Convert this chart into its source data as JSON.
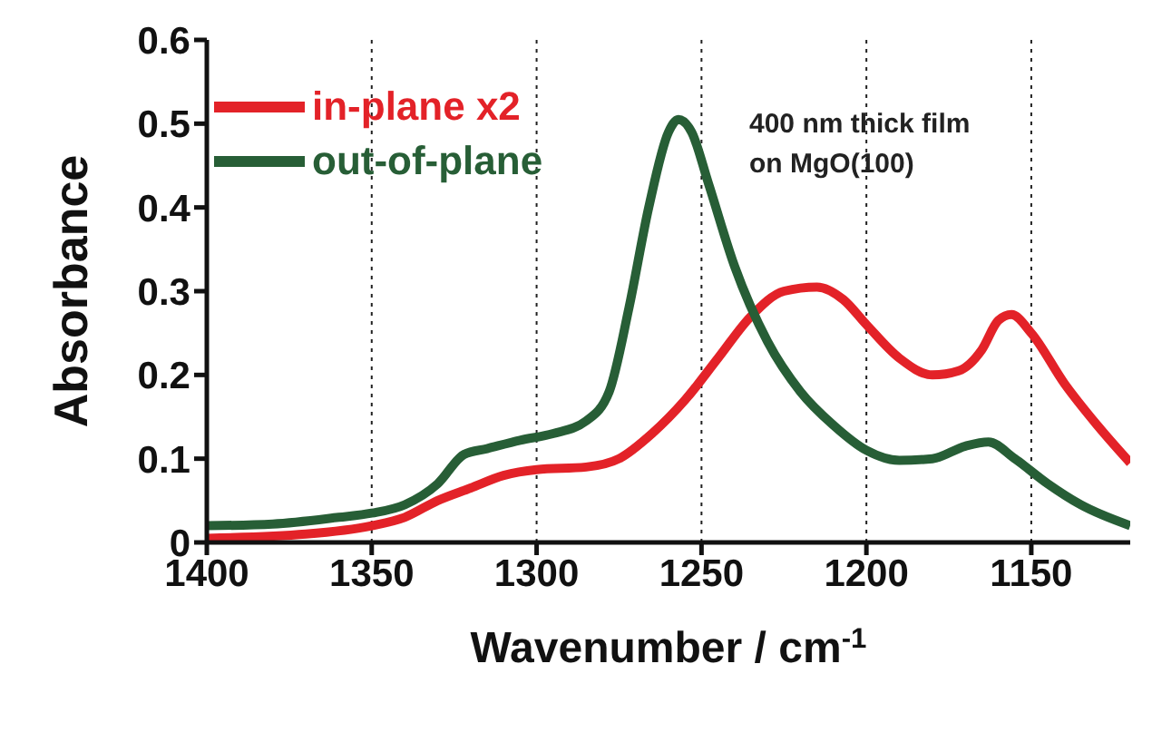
{
  "chart_data": {
    "type": "line",
    "xlabel": "Wavenumber / cm$^{-1}$",
    "ylabel": "Absorbance",
    "annotations": [
      "400 nm thick film\non MgO(100)"
    ],
    "xlim": [
      1400,
      1120
    ],
    "xticks": [
      1400,
      1350,
      1300,
      1250,
      1200,
      1150
    ],
    "ylim": [
      0,
      0.6
    ],
    "yticks": [
      0,
      0.1,
      0.2,
      0.3,
      0.4,
      0.5,
      0.6
    ],
    "grid": "x",
    "legend": "top left",
    "marker": "none",
    "line_style": "solid",
    "series": [
      {
        "name": "in-plane x2",
        "color": "#e32228",
        "x": [
          1400,
          1370,
          1350,
          1340,
          1330,
          1320,
          1310,
          1300,
          1285,
          1275,
          1265,
          1255,
          1245,
          1235,
          1225,
          1215,
          1207,
          1200,
          1190,
          1180,
          1172,
          1165,
          1160,
          1156,
          1150,
          1140,
          1130,
          1120
        ],
        "values": [
          0.005,
          0.01,
          0.02,
          0.03,
          0.05,
          0.065,
          0.08,
          0.087,
          0.09,
          0.1,
          0.13,
          0.17,
          0.22,
          0.27,
          0.3,
          0.305,
          0.29,
          0.26,
          0.22,
          0.2,
          0.205,
          0.23,
          0.265,
          0.272,
          0.25,
          0.19,
          0.14,
          0.095
        ]
      },
      {
        "name": "out-of-plane",
        "color": "#275e36",
        "x": [
          1400,
          1380,
          1360,
          1350,
          1340,
          1330,
          1322,
          1315,
          1305,
          1295,
          1285,
          1278,
          1272,
          1266,
          1260,
          1257,
          1253,
          1248,
          1240,
          1230,
          1220,
          1210,
          1200,
          1190,
          1180,
          1170,
          1163,
          1155,
          1145,
          1135,
          1120
        ],
        "values": [
          0.02,
          0.022,
          0.03,
          0.035,
          0.045,
          0.07,
          0.105,
          0.112,
          0.122,
          0.13,
          0.145,
          0.18,
          0.28,
          0.4,
          0.49,
          0.505,
          0.49,
          0.43,
          0.33,
          0.24,
          0.18,
          0.14,
          0.11,
          0.098,
          0.1,
          0.115,
          0.12,
          0.1,
          0.07,
          0.045,
          0.02
        ]
      }
    ]
  }
}
